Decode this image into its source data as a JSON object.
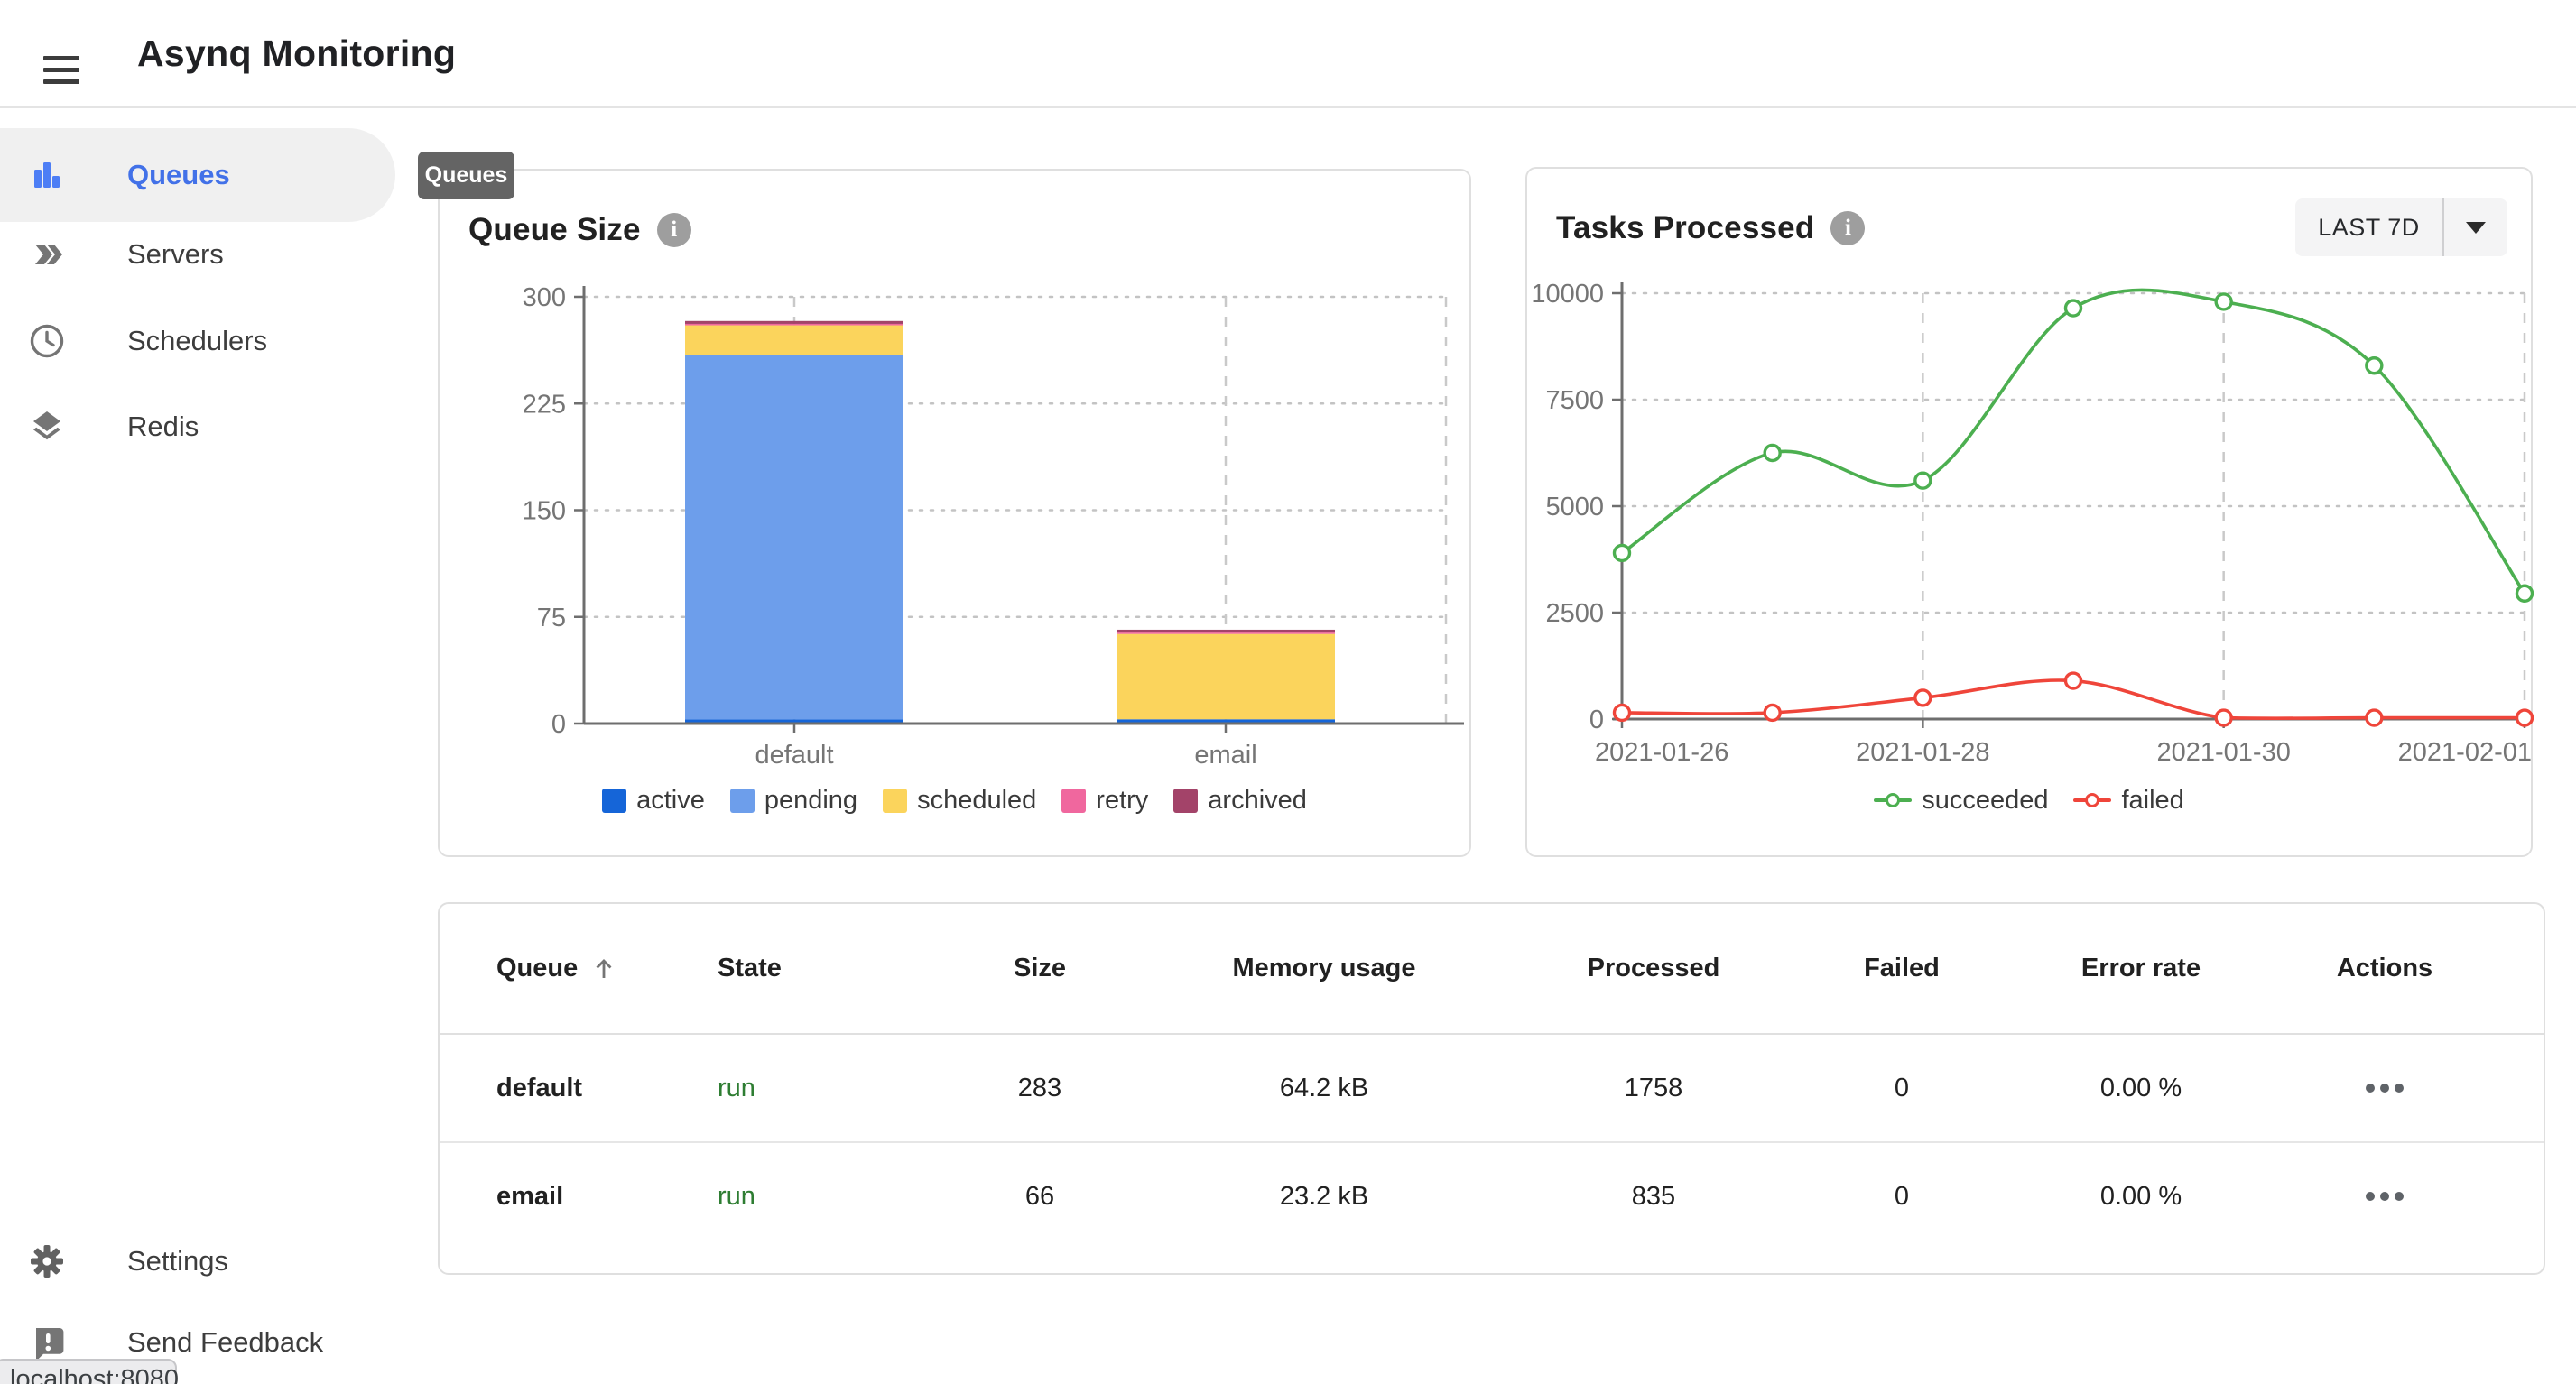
{
  "app": {
    "title": "Asynq Monitoring"
  },
  "sidebar": {
    "items": [
      {
        "label": "Queues",
        "icon": "bar-chart-icon",
        "active": true
      },
      {
        "label": "Servers",
        "icon": "double-arrow-icon",
        "active": false
      },
      {
        "label": "Schedulers",
        "icon": "clock-icon",
        "active": false
      },
      {
        "label": "Redis",
        "icon": "layers-icon",
        "active": false
      }
    ],
    "bottom_items": [
      {
        "label": "Settings",
        "icon": "gear-icon"
      },
      {
        "label": "Send Feedback",
        "icon": "feedback-icon"
      }
    ]
  },
  "tooltip": {
    "label": "Queues"
  },
  "status_bar": {
    "text": "localhost:8080"
  },
  "colors": {
    "primary_blue": "#4271e8",
    "active": "#1565d8",
    "pending": "#6d9eeb",
    "scheduled": "#fbd45c",
    "retry": "#f0679e",
    "archived": "#a34369",
    "succeeded": "#4caf50",
    "failed": "#ef453a",
    "run_state": "#2e7d32"
  },
  "queue_size_card": {
    "title": "Queue Size",
    "info_icon": "info-icon"
  },
  "tasks_card": {
    "title": "Tasks Processed",
    "info_icon": "info-icon",
    "range_button": "LAST 7D"
  },
  "chart_data": [
    {
      "type": "bar",
      "title": "Queue Size",
      "stacked": true,
      "categories": [
        "default",
        "email"
      ],
      "series": [
        {
          "name": "active",
          "color": "#1565d8",
          "values": [
            3,
            3
          ]
        },
        {
          "name": "pending",
          "color": "#6d9eeb",
          "values": [
            256,
            0
          ]
        },
        {
          "name": "scheduled",
          "color": "#fbd45c",
          "values": [
            21,
            60
          ]
        },
        {
          "name": "retry",
          "color": "#f0679e",
          "values": [
            1,
            1
          ]
        },
        {
          "name": "archived",
          "color": "#a34369",
          "values": [
            2,
            2
          ]
        }
      ],
      "ylim": [
        0,
        300
      ],
      "yticks": [
        0,
        75,
        150,
        225,
        300
      ],
      "grid": "dashed",
      "legend_position": "bottom"
    },
    {
      "type": "line",
      "title": "Tasks Processed",
      "x": [
        "2021-01-26",
        "2021-01-27",
        "2021-01-28",
        "2021-01-29",
        "2021-01-30",
        "2021-01-31",
        "2021-02-01"
      ],
      "xtick_indices": [
        0,
        2,
        4,
        6
      ],
      "series": [
        {
          "name": "succeeded",
          "color": "#4caf50",
          "values": [
            3900,
            6250,
            5600,
            9650,
            9800,
            8300,
            2950
          ]
        },
        {
          "name": "failed",
          "color": "#ef453a",
          "values": [
            150,
            150,
            500,
            900,
            30,
            30,
            30
          ]
        }
      ],
      "ylim": [
        0,
        10000
      ],
      "yticks": [
        0,
        2500,
        5000,
        7500,
        10000
      ],
      "grid": "dashed",
      "legend_position": "bottom",
      "markers": "circle",
      "smooth": true
    }
  ],
  "table": {
    "headers": [
      "Queue",
      "State",
      "Size",
      "Memory usage",
      "Processed",
      "Failed",
      "Error rate",
      "Actions"
    ],
    "rows": [
      {
        "queue": "default",
        "state": "run",
        "size": "283",
        "memory": "64.2 kB",
        "processed": "1758",
        "failed": "0",
        "error_rate": "0.00 %"
      },
      {
        "queue": "email",
        "state": "run",
        "size": "66",
        "memory": "23.2 kB",
        "processed": "835",
        "failed": "0",
        "error_rate": "0.00 %"
      }
    ]
  }
}
